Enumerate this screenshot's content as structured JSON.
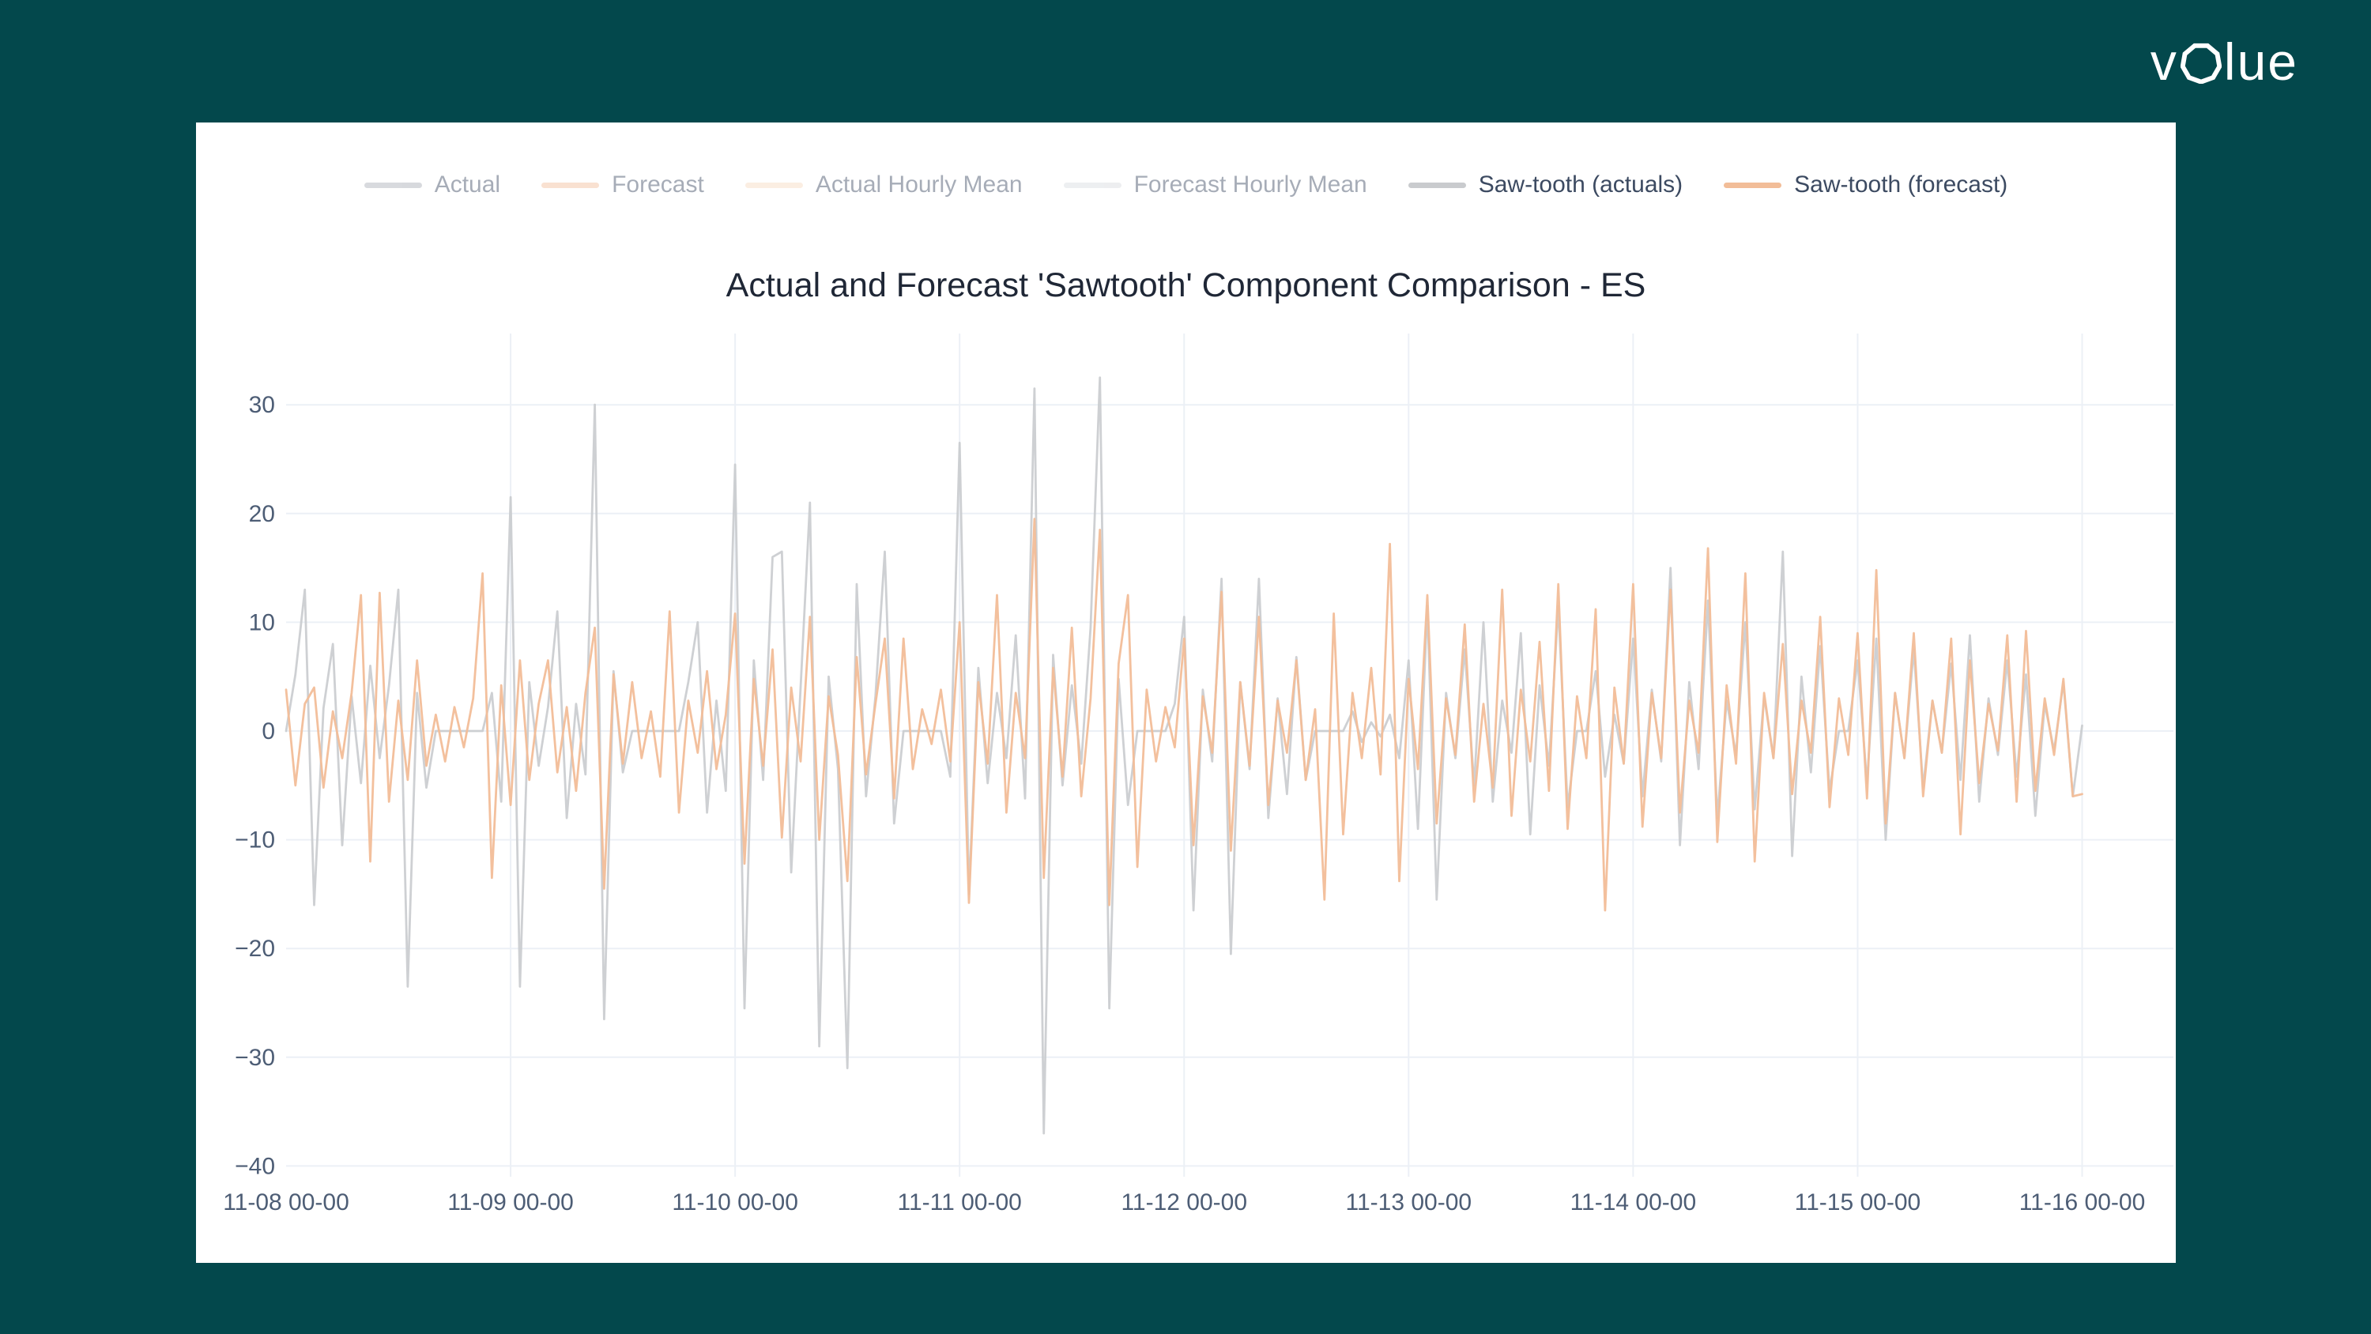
{
  "brand": {
    "name": "volue",
    "logo_prefix": "v",
    "logo_suffix": "lue",
    "logo_color": "#ffffff"
  },
  "page": {
    "background_color": "#03484c",
    "card_background_color": "#ffffff"
  },
  "chart": {
    "title": "Actual and Forecast 'Sawtooth' Component Comparison - ES"
  },
  "legend": {
    "items": [
      {
        "label": "Actual",
        "color": "#a8adb6",
        "active": false
      },
      {
        "label": "Forecast",
        "color": "#f2bd98",
        "active": false
      },
      {
        "label": "Actual Hourly Mean",
        "color": "#f7d9bf",
        "active": false
      },
      {
        "label": "Forecast Hourly Mean",
        "color": "#d8dbe0",
        "active": false
      },
      {
        "label": "Saw-tooth (actuals)",
        "color": "#c9cbce",
        "active": true
      },
      {
        "label": "Saw-tooth (forecast)",
        "color": "#f2bd98",
        "active": true
      }
    ]
  },
  "chart_data": {
    "type": "line",
    "title": "Actual and Forecast 'Sawtooth' Component Comparison - ES",
    "xlabel": "",
    "ylabel": "",
    "grid": true,
    "legend_position": "top-center",
    "grid_color": "#ecf0f6",
    "tick_label_color": "#4d5d75",
    "x_axis": {
      "unit": "hours since 11-08 00:00",
      "range_hours": [
        0,
        192
      ],
      "ticks": [
        {
          "hour": 0,
          "label": "11-08 00-00"
        },
        {
          "hour": 24,
          "label": "11-09 00-00"
        },
        {
          "hour": 48,
          "label": "11-10 00-00"
        },
        {
          "hour": 72,
          "label": "11-11 00-00"
        },
        {
          "hour": 96,
          "label": "11-12 00-00"
        },
        {
          "hour": 120,
          "label": "11-13 00-00"
        },
        {
          "hour": 144,
          "label": "11-14 00-00"
        },
        {
          "hour": 168,
          "label": "11-15 00-00"
        },
        {
          "hour": 192,
          "label": "11-16 00-00"
        }
      ]
    },
    "y_axis": {
      "range": [
        -41,
        36.5
      ],
      "ticks": [
        {
          "value": 30,
          "label": "30"
        },
        {
          "value": 20,
          "label": "20"
        },
        {
          "value": 10,
          "label": "10"
        },
        {
          "value": 0,
          "label": "0"
        },
        {
          "value": -10,
          "label": "−10"
        },
        {
          "value": -20,
          "label": "−20"
        },
        {
          "value": -30,
          "label": "−30"
        },
        {
          "value": -40,
          "label": "−40"
        }
      ]
    },
    "hidden_series_names": [
      "Actual",
      "Forecast",
      "Actual Hourly Mean",
      "Forecast Hourly Mean"
    ],
    "series": [
      {
        "name": "Saw-tooth (actuals)",
        "color": "#c9cbce",
        "opacity": 0.9,
        "x_start_hour": 0,
        "x_step_hours": 1,
        "values": [
          0.0,
          5.2,
          13.0,
          -16.0,
          2.1,
          8.0,
          -10.5,
          3.2,
          -4.8,
          6.0,
          -2.5,
          4.2,
          13.0,
          -23.5,
          3.5,
          -5.2,
          0.0,
          0.0,
          0.0,
          0.0,
          0.0,
          0.0,
          3.5,
          -6.5,
          21.5,
          -23.5,
          4.5,
          -3.2,
          2.2,
          11.0,
          -8.0,
          2.5,
          -4.0,
          30.0,
          -26.5,
          5.5,
          -3.8,
          0.0,
          0.0,
          0.0,
          0.0,
          0.0,
          0.0,
          4.5,
          10.0,
          -7.5,
          2.8,
          -5.5,
          24.5,
          -25.5,
          6.5,
          -4.5,
          16.0,
          16.5,
          -13.0,
          4.0,
          21.0,
          -29.0,
          5.0,
          -3.5,
          -31.0,
          13.5,
          -6.0,
          3.2,
          16.5,
          -8.5,
          0.0,
          0.0,
          0.0,
          0.0,
          0.0,
          -4.2,
          26.5,
          -15.0,
          5.8,
          -4.8,
          3.5,
          -2.5,
          8.8,
          -6.2,
          31.5,
          -37.0,
          7.0,
          -5.0,
          4.2,
          -3.0,
          9.5,
          32.5,
          -25.5,
          4.8,
          -6.8,
          0.0,
          0.0,
          0.0,
          0.0,
          2.5,
          10.5,
          -16.5,
          3.8,
          -2.8,
          14.0,
          -20.5,
          4.5,
          -3.5,
          14.0,
          -8.0,
          3.0,
          -5.8,
          6.8,
          -4.5,
          0.0,
          0.0,
          0.0,
          0.0,
          1.8,
          -1.0,
          0.8,
          -0.5,
          1.5,
          -2.5,
          6.5,
          -9.0,
          11.5,
          -15.5,
          3.5,
          -2.5,
          7.5,
          -5.0,
          10.0,
          -6.5,
          2.8,
          -2.0,
          9.0,
          -9.5,
          4.2,
          -3.2,
          11.5,
          -7.0,
          0.0,
          0.0,
          5.5,
          -4.2,
          1.5,
          -3.0,
          8.5,
          -6.0,
          3.8,
          -2.8,
          15.0,
          -10.5,
          4.5,
          -3.5,
          12.0,
          -8.0,
          2.8,
          -2.2,
          10.0,
          -7.2,
          3.2,
          -2.5,
          16.5,
          -11.5,
          5.0,
          -3.8,
          7.8,
          -5.5,
          0.0,
          0.0,
          6.5,
          -4.8,
          8.5,
          -10.0,
          3.5,
          -2.5,
          7.5,
          -5.2,
          2.8,
          -2.0,
          6.2,
          -4.5,
          8.8,
          -6.5,
          3.0,
          -2.2,
          6.5,
          -4.2,
          5.2,
          -7.8,
          2.5,
          -1.8,
          4.5,
          -6.0,
          0.5
        ]
      },
      {
        "name": "Saw-tooth (forecast)",
        "color": "#f2bd98",
        "opacity": 0.95,
        "x_start_hour": 0,
        "x_step_hours": 1,
        "values": [
          3.8,
          -5.0,
          2.5,
          4.0,
          -5.2,
          1.8,
          -2.5,
          3.5,
          12.5,
          -12.0,
          12.7,
          -6.5,
          2.8,
          -4.5,
          6.5,
          -3.2,
          1.5,
          -2.8,
          2.2,
          -1.5,
          3.0,
          14.5,
          -13.5,
          4.2,
          -6.8,
          6.5,
          -4.5,
          2.5,
          6.5,
          -3.8,
          2.2,
          -5.5,
          3.5,
          9.5,
          -14.5,
          5.2,
          -3.0,
          4.5,
          -2.5,
          1.8,
          -4.2,
          11.0,
          -7.5,
          2.8,
          -2.0,
          5.5,
          -3.5,
          1.5,
          10.8,
          -12.2,
          4.8,
          -3.2,
          7.5,
          -9.8,
          4.0,
          -2.8,
          10.5,
          -10.0,
          3.2,
          -2.2,
          -13.8,
          6.8,
          -4.0,
          2.5,
          8.5,
          -6.2,
          8.5,
          -3.5,
          2.0,
          -1.2,
          3.8,
          -2.8,
          10.0,
          -15.8,
          4.5,
          -3.0,
          12.5,
          -7.5,
          3.5,
          -2.5,
          19.5,
          -13.5,
          5.8,
          -4.2,
          9.5,
          -6.0,
          3.0,
          18.5,
          -16.0,
          6.2,
          12.5,
          -12.5,
          3.8,
          -2.8,
          2.2,
          -1.5,
          8.5,
          -10.5,
          3.2,
          -2.0,
          12.8,
          -11.0,
          4.5,
          -3.2,
          10.5,
          -6.8,
          2.8,
          -2.0,
          6.5,
          -4.5,
          2.0,
          -15.5,
          10.8,
          -9.5,
          3.5,
          -2.5,
          5.8,
          -4.0,
          17.2,
          -13.8,
          4.8,
          -3.5,
          12.5,
          -8.5,
          3.0,
          -2.2,
          9.8,
          -6.5,
          2.5,
          -5.2,
          13.0,
          -7.8,
          3.8,
          -2.8,
          8.2,
          -5.5,
          13.5,
          -9.0,
          3.2,
          -2.5,
          11.2,
          -16.5,
          4.0,
          -3.0,
          13.5,
          -8.8,
          3.5,
          -2.5,
          13.0,
          -7.5,
          2.8,
          -2.0,
          16.8,
          -10.2,
          4.2,
          -3.0,
          14.5,
          -12.0,
          3.5,
          -2.5,
          8.0,
          -5.8,
          2.8,
          -2.0,
          10.5,
          -7.0,
          3.0,
          -2.2,
          9.0,
          -6.2,
          14.8,
          -8.5,
          3.5,
          -2.5,
          9.0,
          -6.0,
          2.8,
          -2.0,
          8.5,
          -9.5,
          6.5,
          -4.8,
          2.5,
          -1.8,
          8.8,
          -6.5,
          9.2,
          -5.5,
          3.0,
          -2.2,
          4.8,
          -6.0,
          -5.8
        ]
      }
    ]
  }
}
